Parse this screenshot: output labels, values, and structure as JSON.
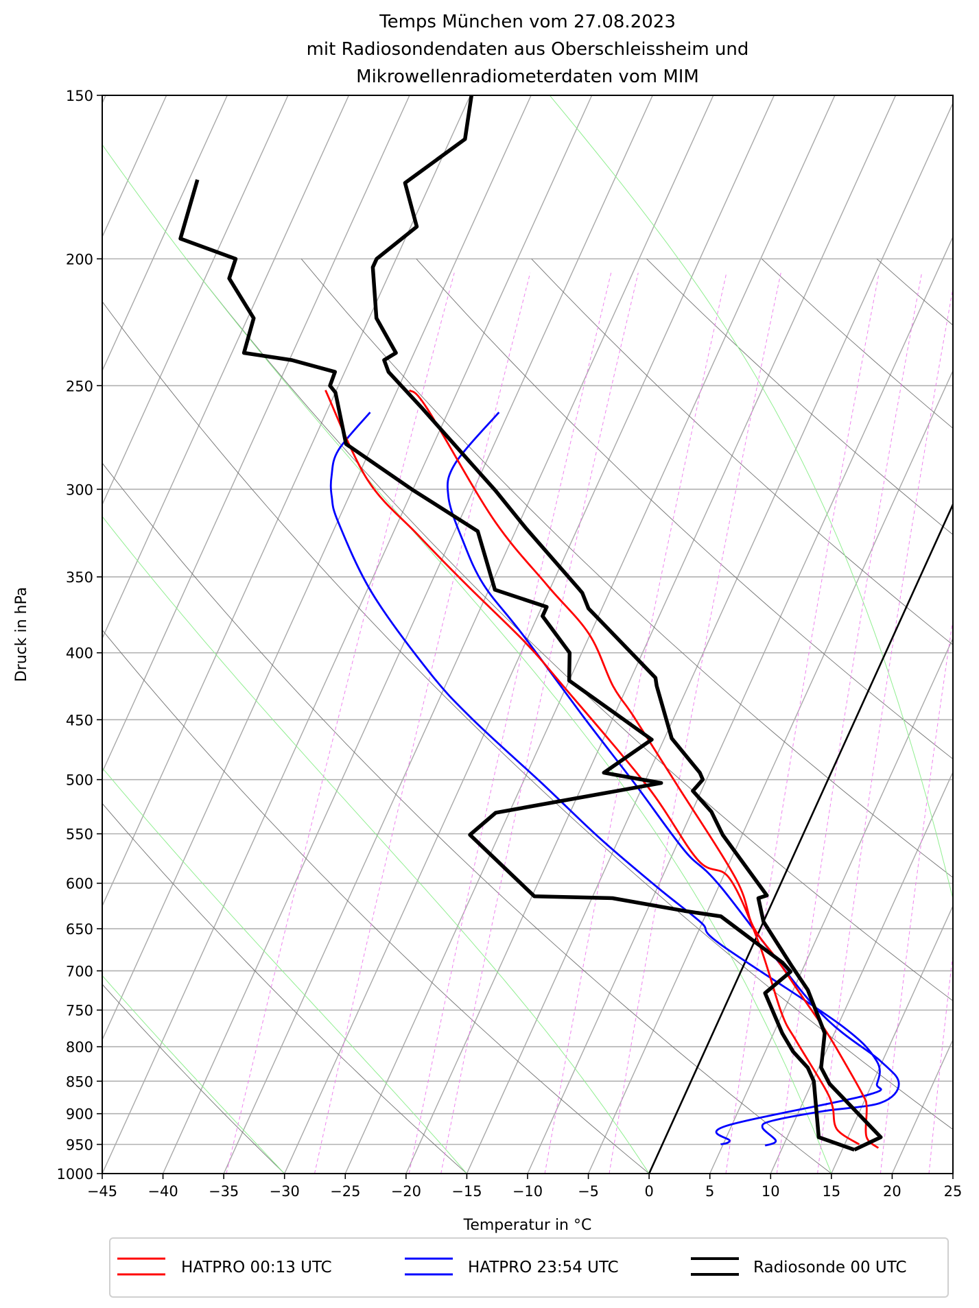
{
  "chart_data": {
    "type": "line",
    "subtype": "skew-T log-p diagram",
    "title": [
      "Temps München vom 27.08.2023",
      "mit Radiosondendaten aus Oberschleissheim und",
      "Mikrowellenradiometerdaten vom MIM"
    ],
    "xlabel": "Temperatur in °C",
    "ylabel": "Druck in hPa",
    "xlim": [
      -45,
      25
    ],
    "ylim": [
      1000,
      150
    ],
    "yscale": "log",
    "xticks": [
      -45,
      -40,
      -35,
      -30,
      -25,
      -20,
      -15,
      -10,
      -5,
      0,
      5,
      10,
      15,
      20,
      25
    ],
    "xtick_labels": [
      "−45",
      "−40",
      "−35",
      "−30",
      "−25",
      "−20",
      "−15",
      "−10",
      "−5",
      "0",
      "5",
      "10",
      "15",
      "20",
      "25"
    ],
    "yticks": [
      150,
      200,
      250,
      300,
      350,
      400,
      450,
      500,
      550,
      600,
      650,
      700,
      750,
      800,
      850,
      900,
      950,
      1000
    ],
    "ytick_labels": [
      "150",
      "200",
      "250",
      "300",
      "350",
      "400",
      "450",
      "500",
      "550",
      "600",
      "650",
      "700",
      "750",
      "800",
      "850",
      "900",
      "950",
      "1000"
    ],
    "grid": true,
    "legend": {
      "placement": "bottom-center, below axes",
      "columns": 3
    },
    "background": {
      "isotherm_step_C": 5,
      "highlighted_isotherm_C": 0,
      "dry_adiabats_T1000_C": [
        -30,
        -15,
        0,
        15,
        30,
        45,
        60,
        75,
        90,
        105,
        120,
        135,
        150,
        165
      ],
      "moist_adiabats_T1000_C": [
        -30,
        -15,
        0,
        15,
        30,
        45
      ],
      "mixing_ratios_g_per_kg": [
        0.2,
        0.4,
        0.8,
        1,
        2,
        3,
        6,
        8,
        10,
        14,
        18
      ],
      "colors": {
        "isobar": "#b0b0b0",
        "isotherm": "#a8a8a8",
        "dry_adiabat": "#707070",
        "moist_adiabat": "#90ee90",
        "mixing_ratio": "#ee82ee",
        "highlight_isotherm": "#000000"
      }
    },
    "series": [
      {
        "name": "HATPRO 00:13 UTC",
        "color": "#ff0000",
        "curves": [
          [
            [
              956,
              17.9
            ],
            [
              937,
              16.5
            ],
            [
              889,
              15.4
            ],
            [
              868,
              14.5
            ],
            [
              800,
              10.6
            ],
            [
              772,
              8.8
            ],
            [
              730,
              5.8
            ],
            [
              687,
              2.6
            ],
            [
              647,
              -0.7
            ],
            [
              595,
              -3.9
            ],
            [
              502,
              -12.5
            ],
            [
              447,
              -18.4
            ],
            [
              424,
              -21.2
            ],
            [
              387,
              -25.1
            ],
            [
              355,
              -30.4
            ],
            [
              316,
              -37.3
            ],
            [
              260,
              -46.9
            ],
            [
              252,
              -49.0
            ]
          ],
          [
            [
              950,
              16.2
            ],
            [
              925,
              13.8
            ],
            [
              889,
              12.6
            ],
            [
              861,
              11.3
            ],
            [
              791,
              7.1
            ],
            [
              754,
              4.9
            ],
            [
              668,
              0.5
            ],
            [
              595,
              -4.4
            ],
            [
              576,
              -7.7
            ],
            [
              506,
              -14.6
            ],
            [
              424,
              -25.3
            ],
            [
              393,
              -30.0
            ],
            [
              355,
              -37.0
            ],
            [
              325,
              -42.9
            ],
            [
              295,
              -49.1
            ],
            [
              252,
              -55.9
            ]
          ]
        ]
      },
      {
        "name": "HATPRO 23:54 UTC",
        "color": "#0000ff",
        "curves": [
          [
            [
              952,
              8.5
            ],
            [
              944,
              9.2
            ],
            [
              922,
              7.6
            ],
            [
              911,
              8.2
            ],
            [
              896,
              12.0
            ],
            [
              883,
              16.4
            ],
            [
              854,
              17.2
            ],
            [
              820,
              14.8
            ],
            [
              748,
              7.6
            ],
            [
              604,
              -4.8
            ],
            [
              567,
              -9.1
            ],
            [
              504,
              -15.7
            ],
            [
              449,
              -22.3
            ],
            [
              387,
              -30.6
            ],
            [
              355,
              -35.6
            ],
            [
              329,
              -38.9
            ],
            [
              304,
              -41.8
            ],
            [
              287,
              -42.5
            ],
            [
              262,
              -40.8
            ]
          ],
          [
            [
              950,
              4.8
            ],
            [
              944,
              5.4
            ],
            [
              920,
              4.5
            ],
            [
              871,
              15.0
            ],
            [
              854,
              15.4
            ],
            [
              820,
              14.5
            ],
            [
              769,
              10.1
            ],
            [
              668,
              -2.7
            ],
            [
              643,
              -5.1
            ],
            [
              606,
              -9.8
            ],
            [
              555,
              -16.5
            ],
            [
              504,
              -23.3
            ],
            [
              449,
              -31.6
            ],
            [
              414,
              -36.8
            ],
            [
              360,
              -44.5
            ],
            [
              318,
              -49.9
            ],
            [
              304,
              -51.4
            ],
            [
              293,
              -52.2
            ],
            [
              280,
              -52.6
            ],
            [
              262,
              -51.4
            ]
          ]
        ]
      },
      {
        "name": "Radiosonde 00 UTC",
        "color": "#000000",
        "curves": [
          [
            [
              959,
              16.0
            ],
            [
              938,
              17.7
            ],
            [
              854,
              11.5
            ],
            [
              830,
              10.2
            ],
            [
              781,
              9.2
            ],
            [
              724,
              6.2
            ],
            [
              693,
              3.9
            ],
            [
              642,
              0.0
            ],
            [
              616,
              -1.3
            ],
            [
              613,
              -0.7
            ],
            [
              551,
              -6.6
            ],
            [
              529,
              -8.4
            ],
            [
              510,
              -10.7
            ],
            [
              500,
              -10.3
            ],
            [
              494,
              -10.8
            ],
            [
              465,
              -14.4
            ],
            [
              424,
              -17.6
            ],
            [
              418,
              -18.0
            ],
            [
              370,
              -26.1
            ],
            [
              360,
              -27.2
            ],
            [
              357,
              -27.7
            ],
            [
              321,
              -34.3
            ],
            [
              301,
              -38.1
            ],
            [
              287,
              -41.1
            ],
            [
              260,
              -47.3
            ],
            [
              244,
              -51.4
            ],
            [
              239,
              -52.2
            ],
            [
              236,
              -51.5
            ],
            [
              222,
              -54.4
            ],
            [
              203,
              -56.6
            ],
            [
              200,
              -56.6
            ],
            [
              189,
              -54.5
            ],
            [
              175,
              -57.1
            ],
            [
              162,
              -53.8
            ],
            [
              150,
              -54.9
            ]
          ],
          [
            [
              959,
              16.0
            ],
            [
              938,
              12.6
            ],
            [
              850,
              10.1
            ],
            [
              830,
              9.1
            ],
            [
              807,
              7.3
            ],
            [
              781,
              5.7
            ],
            [
              728,
              2.8
            ],
            [
              701,
              4.1
            ],
            [
              690,
              3.1
            ],
            [
              636,
              -3.7
            ],
            [
              630,
              -6.9
            ],
            [
              616,
              -13.3
            ],
            [
              614,
              -19.8
            ],
            [
              551,
              -27.4
            ],
            [
              530,
              -26.1
            ],
            [
              503,
              -13.6
            ],
            [
              494,
              -18.7
            ],
            [
              466,
              -16.0
            ],
            [
              420,
              -25.0
            ],
            [
              400,
              -26.0
            ],
            [
              375,
              -29.6
            ],
            [
              369,
              -29.6
            ],
            [
              358,
              -34.5
            ],
            [
              323,
              -38.1
            ],
            [
              300,
              -45.1
            ],
            [
              277,
              -52.2
            ],
            [
              253,
              -55.0
            ],
            [
              250,
              -55.7
            ],
            [
              244,
              -55.8
            ],
            [
              239,
              -59.8
            ],
            [
              236,
              -64.0
            ],
            [
              222,
              -64.5
            ],
            [
              207,
              -68.0
            ],
            [
              200,
              -68.2
            ],
            [
              193,
              -73.5
            ],
            [
              174,
              -74.3
            ]
          ]
        ]
      }
    ]
  }
}
